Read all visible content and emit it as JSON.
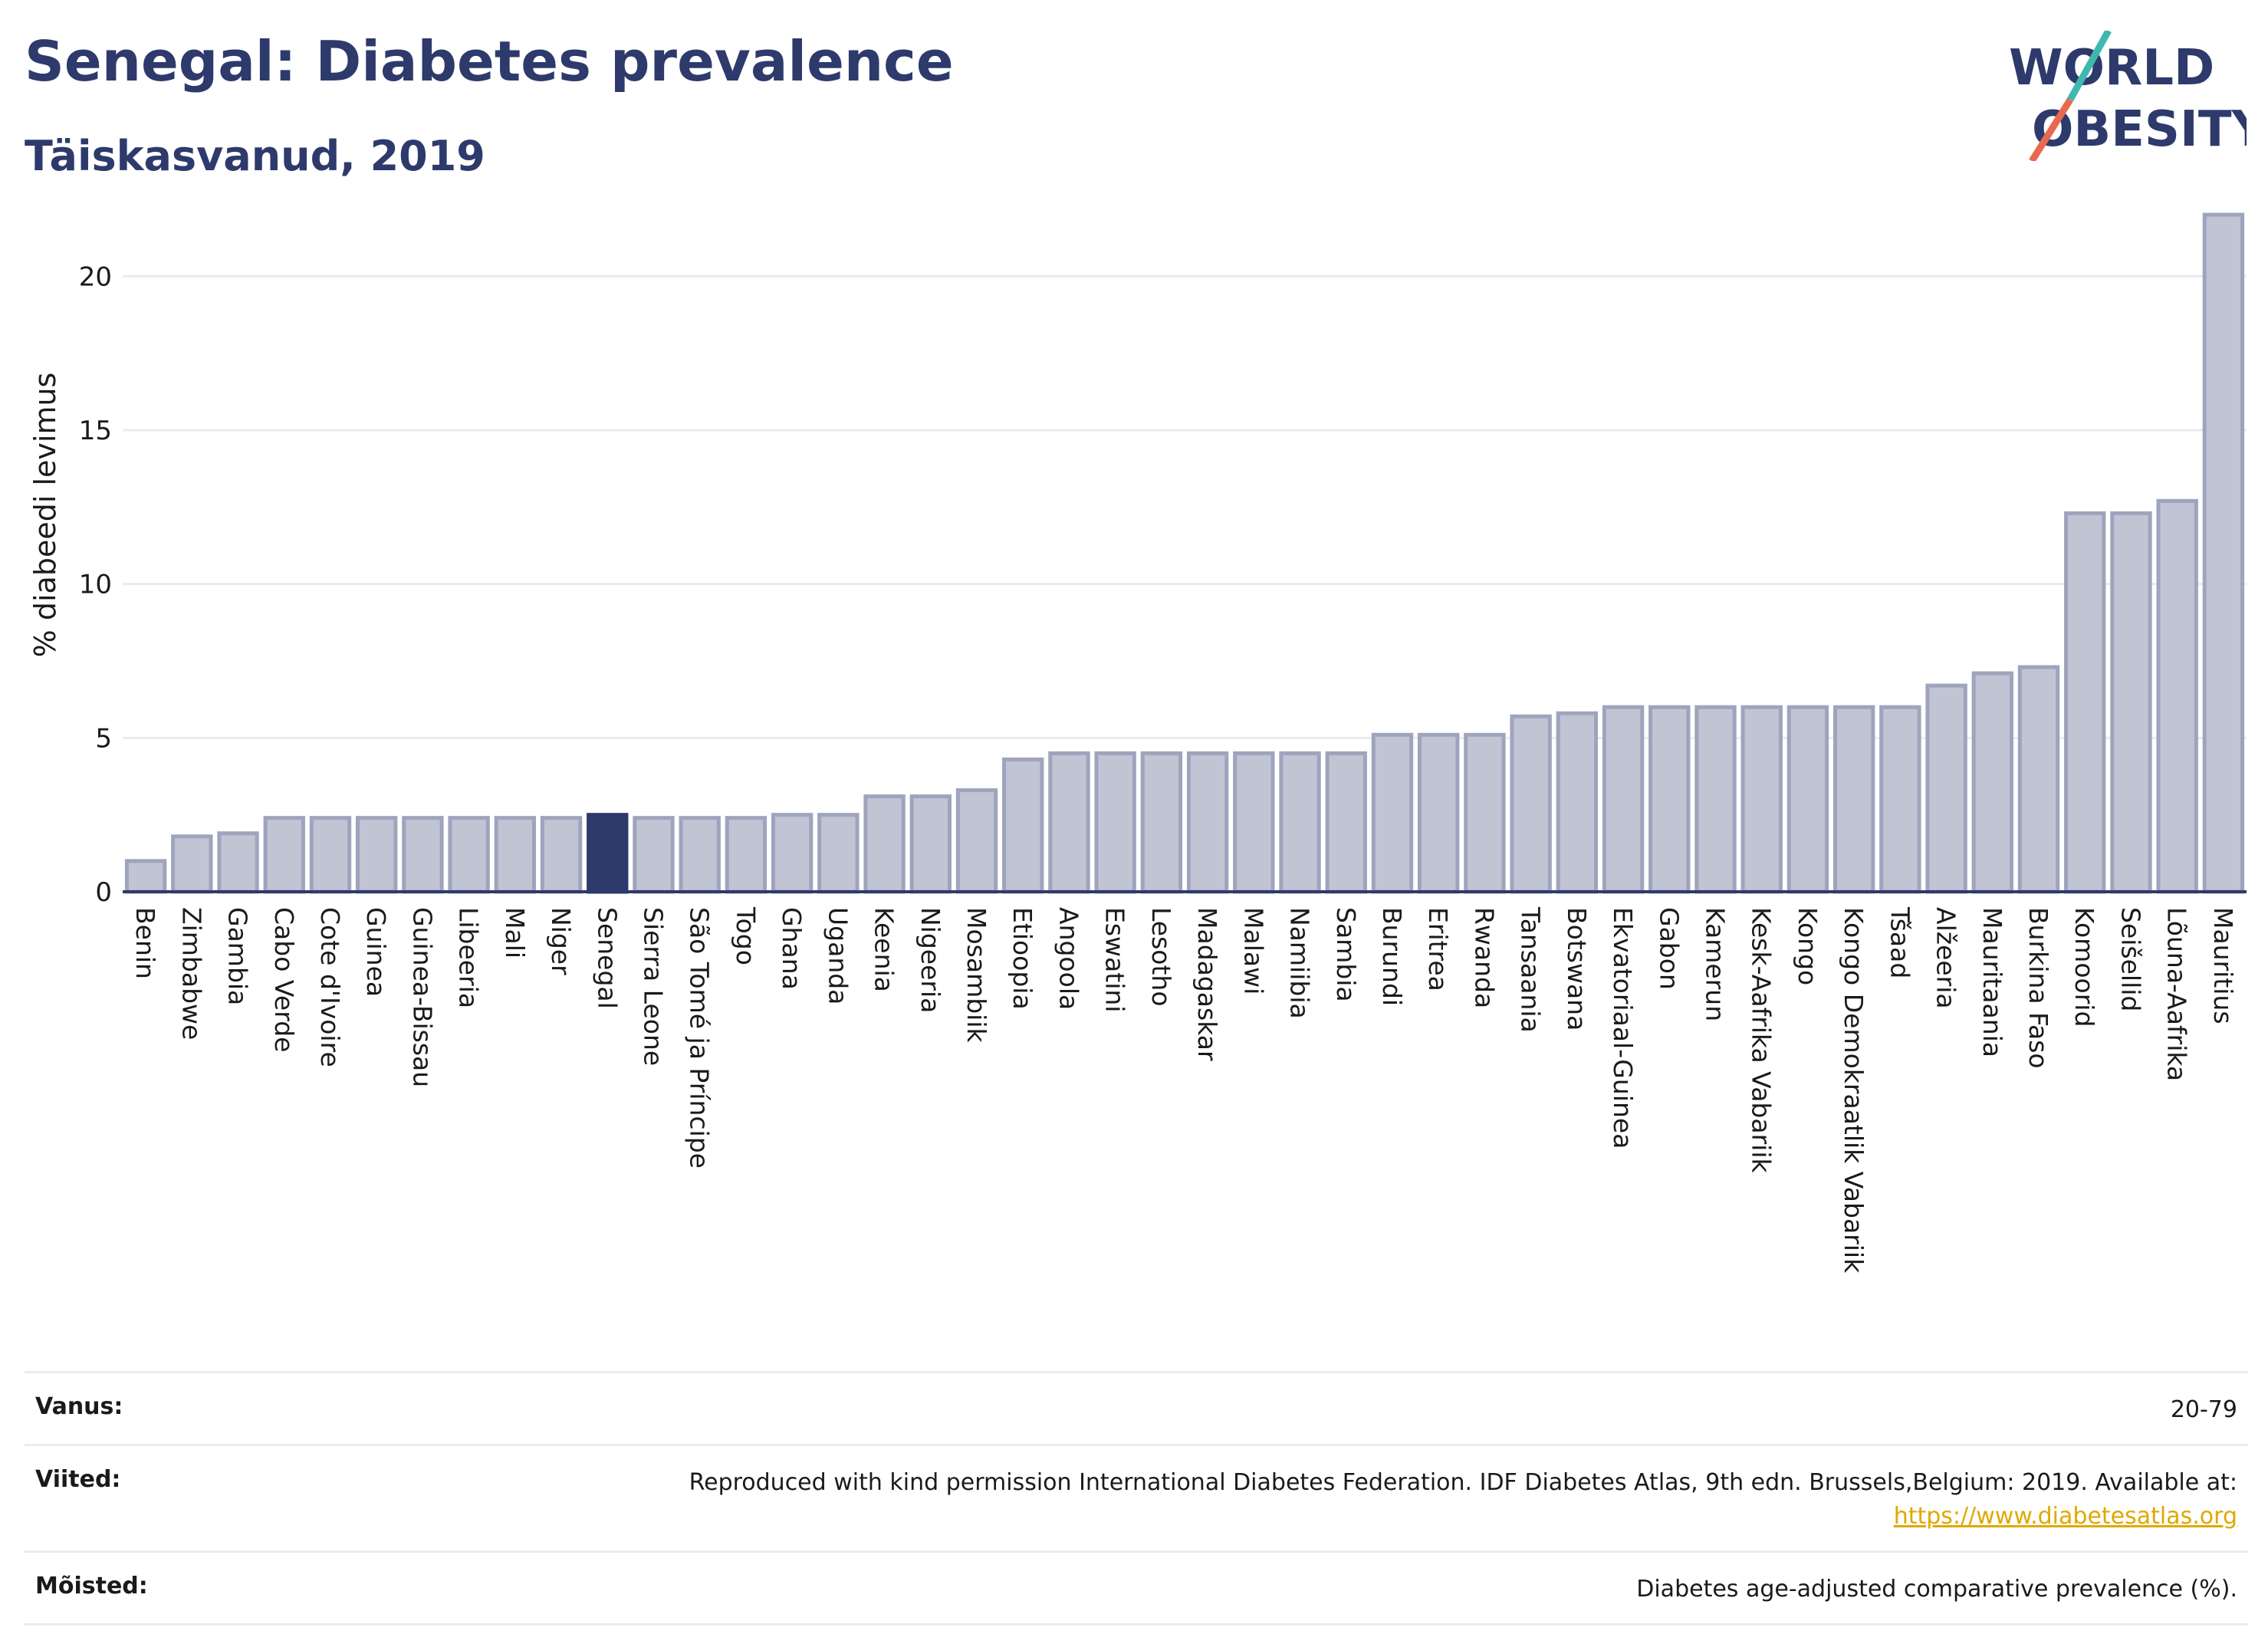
{
  "header": {
    "title": "Senegal: Diabetes prevalence",
    "subtitle": "Täiskasvanud, 2019"
  },
  "logo": {
    "line1": "WORLD",
    "line2": "OBESITY"
  },
  "chart_data": {
    "type": "bar",
    "ylabel": "% diabeedi levimus",
    "ylim": [
      0,
      22.5
    ],
    "yticks": [
      0,
      5,
      10,
      15,
      20
    ],
    "highlight": "Senegal",
    "highlight_color": "#2d3a6b",
    "bar_color": "#c0c4d3",
    "bar_edge_color": "#9ea4bd",
    "grid": true,
    "categories": [
      "Benin",
      "Zimbabwe",
      "Gambia",
      "Cabo Verde",
      "Cote d'Ivoire",
      "Guinea",
      "Guinea-Bissau",
      "Libeeria",
      "Mali",
      "Niger",
      "Senegal",
      "Sierra Leone",
      "São Tomé ja Príncipe",
      "Togo",
      "Ghana",
      "Uganda",
      "Keenia",
      "Nigeeria",
      "Mosambiik",
      "Etioopia",
      "Angoola",
      "Eswatini",
      "Lesotho",
      "Madagaskar",
      "Malawi",
      "Namiibia",
      "Sambia",
      "Burundi",
      "Eritrea",
      "Rwanda",
      "Tansaania",
      "Botswana",
      "Ekvatoriaal-Guinea",
      "Gabon",
      "Kamerun",
      "Kesk-Aafrika Vabariik",
      "Kongo",
      "Kongo Demokraatlik Vabariik",
      "Tšaad",
      "Alžeeria",
      "Mauritaania",
      "Burkina Faso",
      "Komoorid",
      "Seišellid",
      "Lõuna-Aafrika",
      "Mauritius"
    ],
    "values": [
      1.0,
      1.8,
      1.9,
      2.4,
      2.4,
      2.4,
      2.4,
      2.4,
      2.4,
      2.4,
      2.5,
      2.4,
      2.4,
      2.4,
      2.5,
      2.5,
      3.1,
      3.1,
      3.3,
      4.3,
      4.5,
      4.5,
      4.5,
      4.5,
      4.5,
      4.5,
      4.5,
      5.1,
      5.1,
      5.1,
      5.7,
      5.8,
      6.0,
      6.0,
      6.0,
      6.0,
      6.0,
      6.0,
      6.0,
      6.7,
      7.1,
      7.3,
      12.3,
      12.3,
      12.7,
      22.0
    ]
  },
  "footer": {
    "rows": [
      {
        "label": "Vanus:",
        "value": "20-79"
      },
      {
        "label": "Viited:",
        "value": "Reproduced with kind permission International Diabetes Federation. IDF Diabetes Atlas, 9th edn. Brussels,Belgium: 2019. Available at:",
        "link": "https://www.diabetesatlas.org"
      },
      {
        "label": "Mõisted:",
        "value": "Diabetes age-adjusted comparative prevalence (%)."
      }
    ]
  }
}
